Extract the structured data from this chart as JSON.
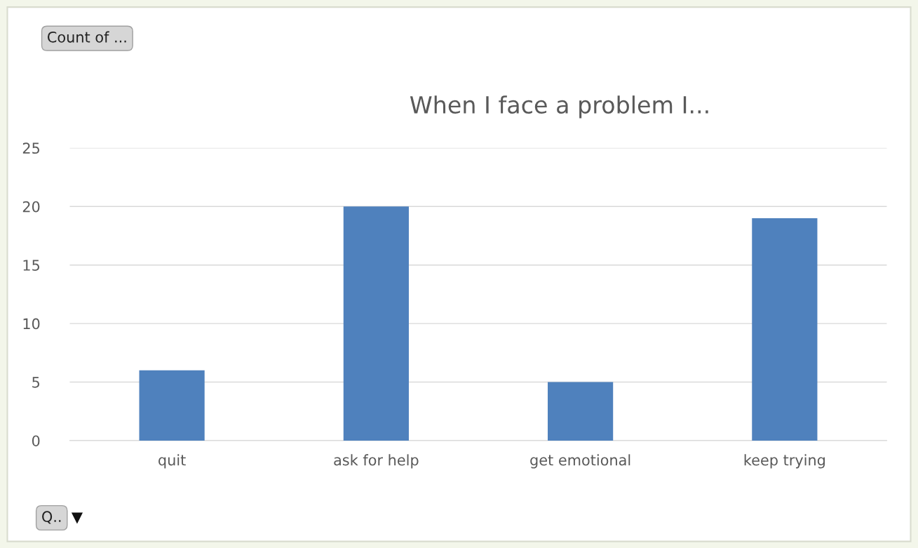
{
  "chart_data": {
    "type": "bar",
    "title": "When I face a problem I...",
    "categories": [
      "quit",
      "ask for help",
      "get emotional",
      "keep trying"
    ],
    "values": [
      6,
      20,
      5,
      19
    ],
    "color": "#4f81bd",
    "ylim": [
      0,
      25
    ],
    "yticks": [
      0,
      5,
      10,
      15,
      20,
      25
    ],
    "grid": "y",
    "annotations": [
      "Count of ...",
      "Q.."
    ]
  }
}
